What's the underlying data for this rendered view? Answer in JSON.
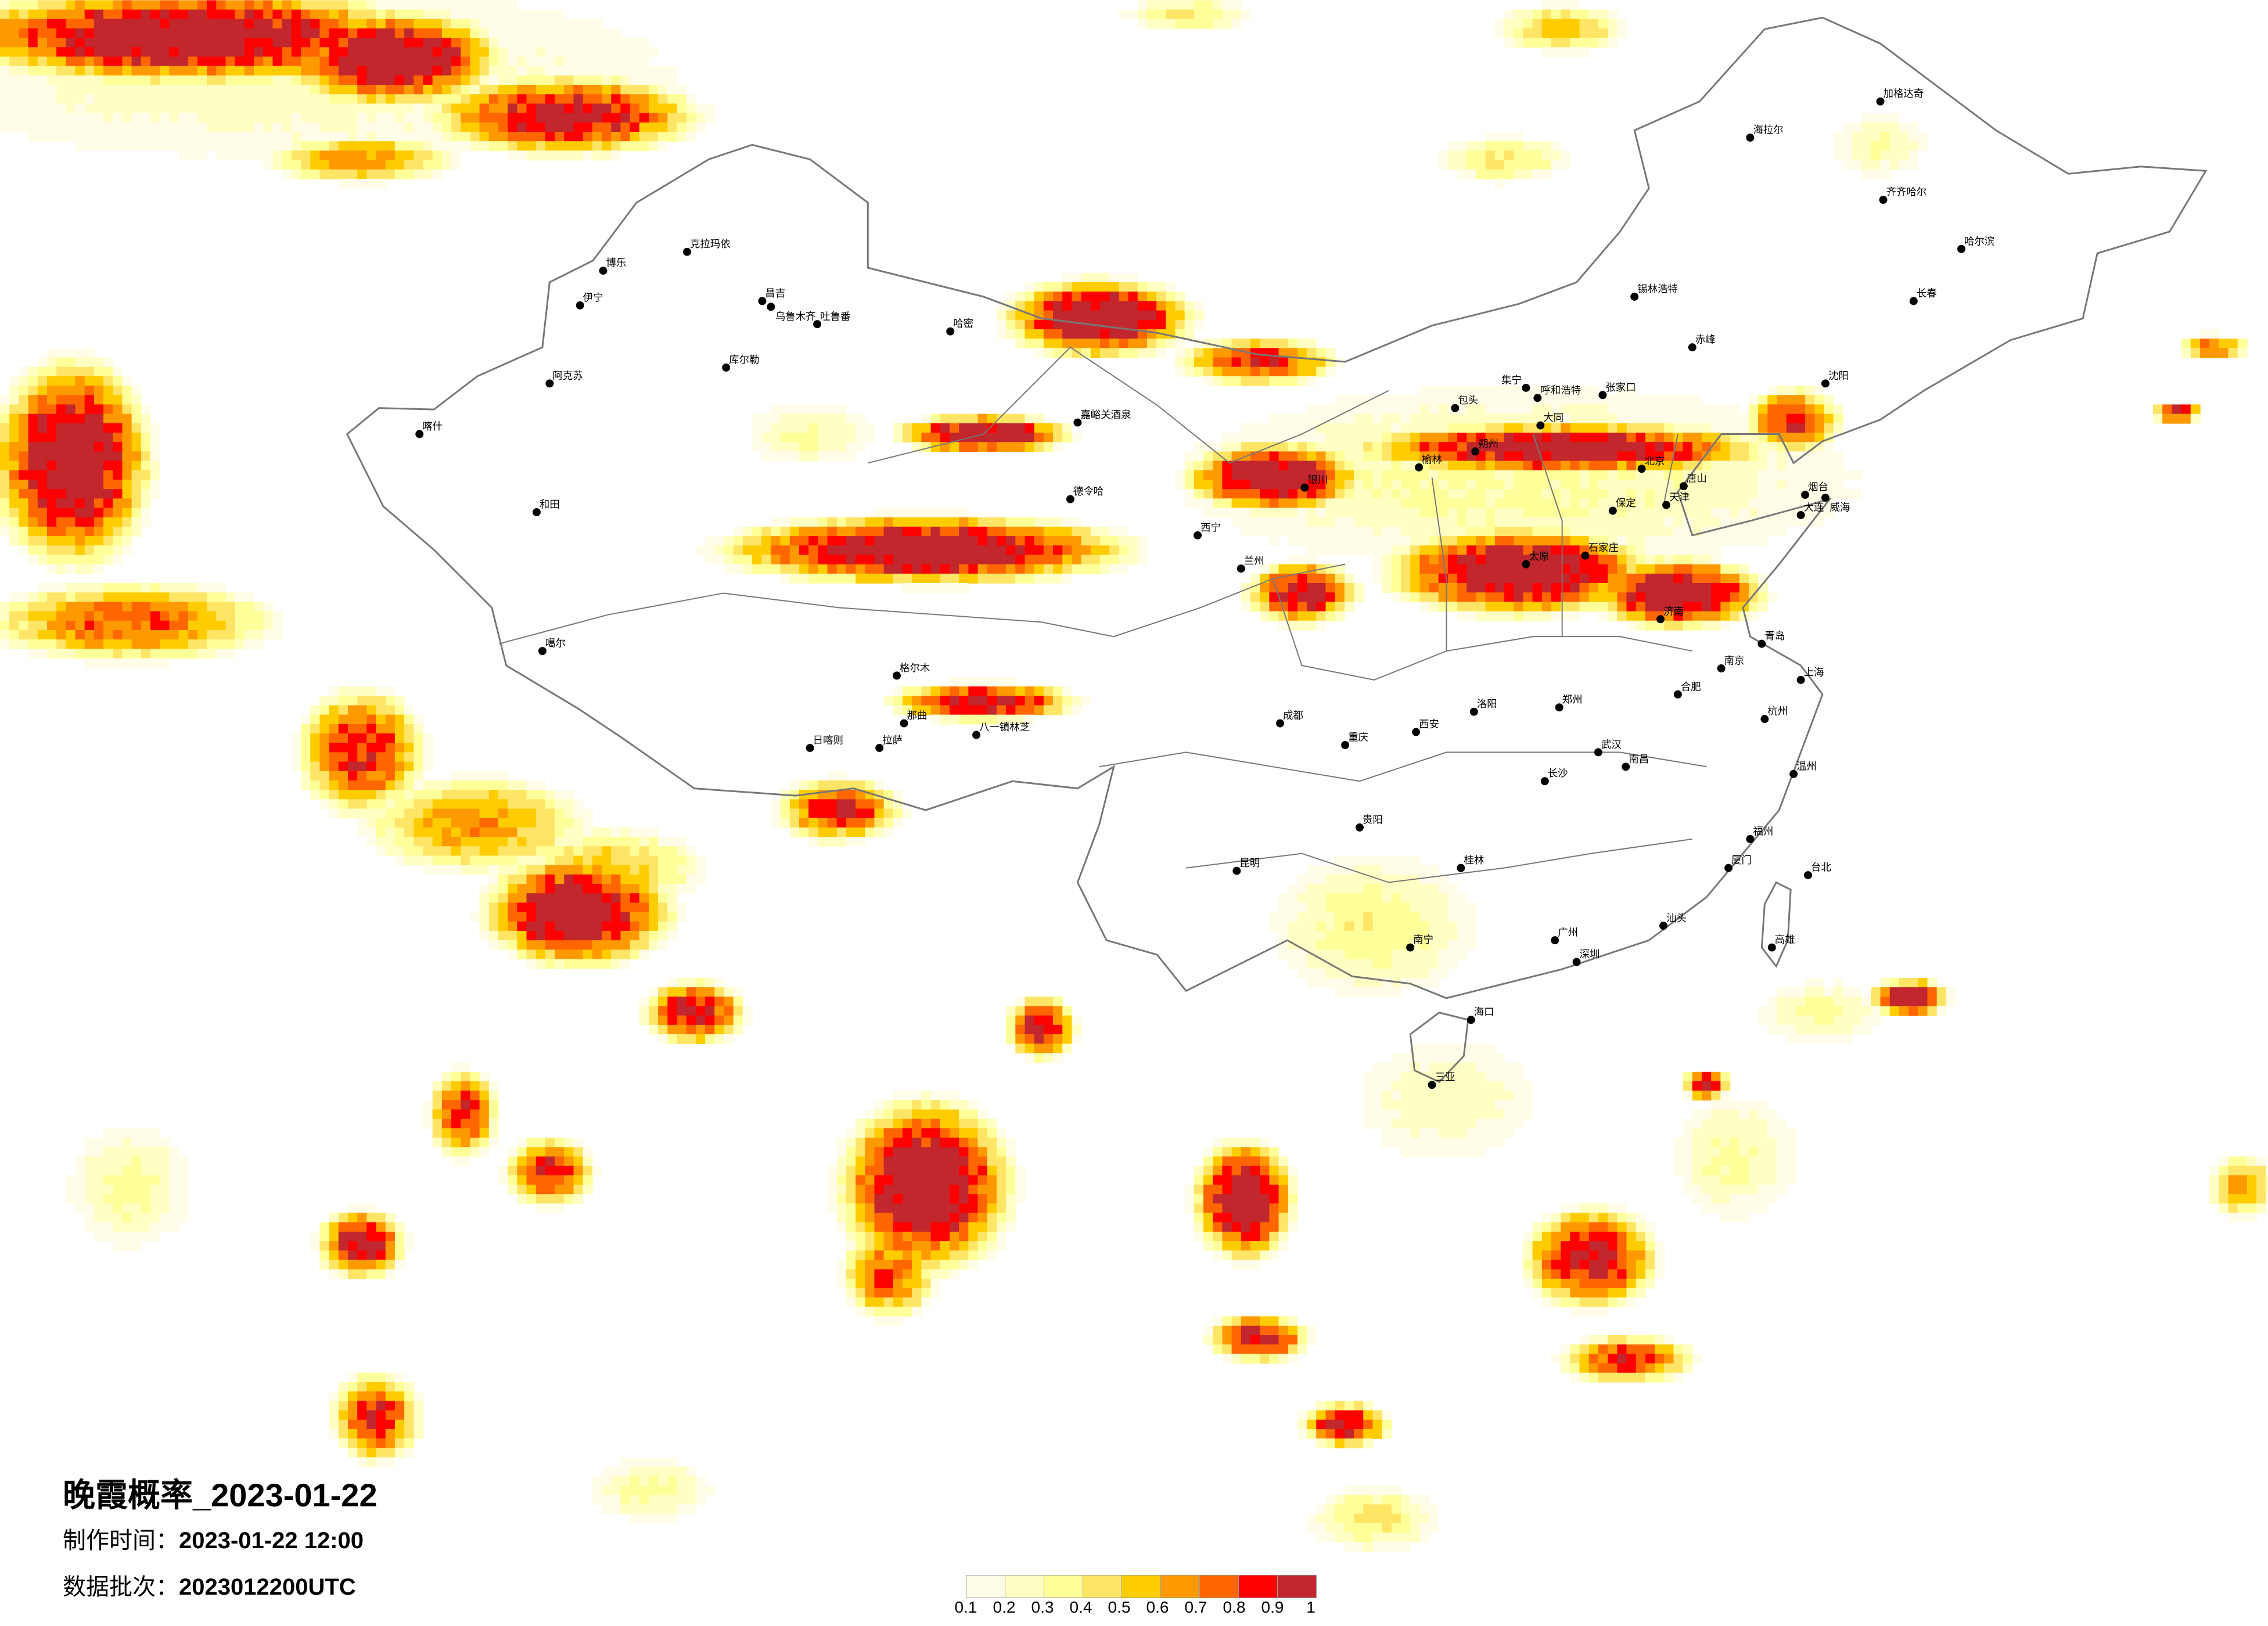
{
  "title": "晚霞概率_2023-01-22",
  "produced": {
    "label": "制作时间：",
    "value": "2023-01-22 12:00"
  },
  "batch": {
    "label": "数据批次：",
    "value": "2023012200UTC"
  },
  "legend": {
    "ticks": [
      "0.1",
      "0.2",
      "0.3",
      "0.4",
      "0.5",
      "0.6",
      "0.7",
      "0.8",
      "0.9",
      "1"
    ],
    "colors": [
      "#fffde8",
      "#ffffc4",
      "#ffff99",
      "#ffe566",
      "#ffcc00",
      "#ff9900",
      "#ff6600",
      "#ff0000",
      "#c1272d"
    ]
  },
  "map": {
    "border_color": "#777777",
    "city_dot_color": "#000000"
  },
  "cities": [
    "克拉玛依",
    "博乐",
    "伊宁",
    "昌吉",
    "乌鲁木齐",
    "吐鲁番",
    "哈密",
    "库尔勒",
    "阿克苏",
    "喀什",
    "和田",
    "噶尔",
    "那曲",
    "拉萨",
    "日喀则",
    "八一镇林芝",
    "格尔木",
    "德令哈",
    "嘉峪关酒泉",
    "西宁",
    "兰州",
    "银川",
    "呼和浩特",
    "包头",
    "集宁",
    "张家口",
    "大同",
    "朔州",
    "榆林",
    "北京",
    "天津",
    "唐山",
    "保定",
    "石家庄",
    "太原",
    "济南",
    "青岛",
    "烟台",
    "威海",
    "郑州",
    "洛阳",
    "西安",
    "大连",
    "沈阳",
    "长春",
    "哈尔滨",
    "齐齐哈尔",
    "加格达奇",
    "海拉尔",
    "锡林浩特",
    "赤峰",
    "上海",
    "南京",
    "杭州",
    "合肥",
    "武汉",
    "长沙",
    "南昌",
    "福州",
    "厦门",
    "广州",
    "深圳",
    "南宁",
    "海口",
    "三亚",
    "贵阳",
    "昆明",
    "成都",
    "重庆",
    "台北",
    "高雄",
    "汕头",
    "桂林",
    "温州"
  ]
}
